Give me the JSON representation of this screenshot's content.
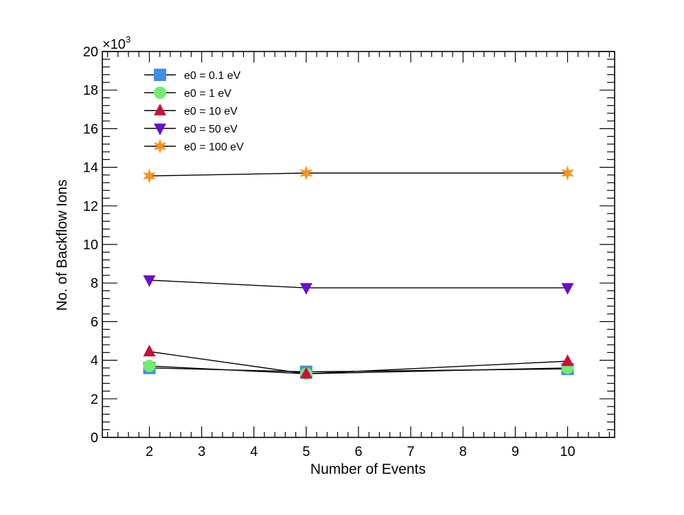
{
  "chart_data": {
    "type": "line",
    "title": "",
    "xlabel": "Number of Events",
    "ylabel": "No. of Backflow Ions",
    "y_multiplier_label": "×10",
    "y_multiplier_exponent": "3",
    "xlim": [
      1.1,
      10.9
    ],
    "ylim": [
      0,
      20
    ],
    "x_ticks": [
      2,
      3,
      4,
      5,
      6,
      7,
      8,
      9,
      10
    ],
    "y_ticks": [
      0,
      2,
      4,
      6,
      8,
      10,
      12,
      14,
      16,
      18,
      20
    ],
    "x": [
      2,
      5,
      10
    ],
    "legend_position": "top-left",
    "series": [
      {
        "name": "e0 = 0.1 eV",
        "marker": "square",
        "color": "#3d8fe8",
        "values": [
          3.6,
          3.4,
          3.55
        ]
      },
      {
        "name": "e0 = 1 eV",
        "marker": "circle",
        "color": "#73ec6e",
        "values": [
          3.7,
          3.3,
          3.6
        ]
      },
      {
        "name": "e0 = 10 eV",
        "marker": "triangle-up",
        "color": "#c8103a",
        "values": [
          4.45,
          3.3,
          3.95
        ]
      },
      {
        "name": "e0 = 50 eV",
        "marker": "triangle-down",
        "color": "#6a0fc4",
        "values": [
          8.15,
          7.75,
          7.75
        ]
      },
      {
        "name": "e0 = 100 eV",
        "marker": "star",
        "color": "#f7941d",
        "values": [
          13.55,
          13.7,
          13.7
        ]
      }
    ]
  }
}
